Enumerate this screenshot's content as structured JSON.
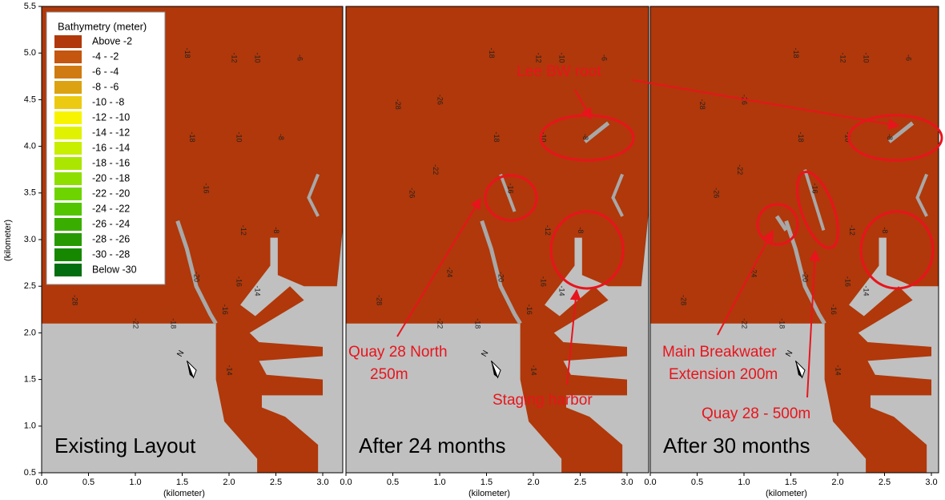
{
  "legend": {
    "title": "Bathymetry (meter)",
    "items": [
      {
        "label": "Above  -2",
        "color": "#b0380a"
      },
      {
        "label": "-4 -  -2",
        "color": "#c4560f"
      },
      {
        "label": "-6 -  -4",
        "color": "#d07a12"
      },
      {
        "label": "-8 -  -6",
        "color": "#dca211"
      },
      {
        "label": "-10 -  -8",
        "color": "#ecca12"
      },
      {
        "label": "-12 - -10",
        "color": "#f8f400"
      },
      {
        "label": "-14 - -12",
        "color": "#e0f200"
      },
      {
        "label": "-16 - -14",
        "color": "#c8ee00"
      },
      {
        "label": "-18 - -16",
        "color": "#aae600"
      },
      {
        "label": "-20 - -18",
        "color": "#8ede00"
      },
      {
        "label": "-22 - -20",
        "color": "#6ed400"
      },
      {
        "label": "-24 - -22",
        "color": "#52c400"
      },
      {
        "label": "-26 - -24",
        "color": "#3aae00"
      },
      {
        "label": "-28 - -26",
        "color": "#269a00"
      },
      {
        "label": "-30 - -28",
        "color": "#158800"
      },
      {
        "label": "Below -30",
        "color": "#036e10"
      }
    ]
  },
  "y_axis_label": "(kilometer)",
  "x_ticks": [
    "0.0",
    "0.5",
    "1.0",
    "1.5",
    "2.0",
    "2.5",
    "3.0"
  ],
  "y_ticks": [
    "0.5",
    "1.0",
    "1.5",
    "2.0",
    "2.5",
    "3.0",
    "3.5",
    "4.0",
    "4.5",
    "5.0",
    "5.5"
  ],
  "panels": [
    {
      "label": "Existing Layout",
      "x_axis_label": "(kilometer)",
      "contour_labels": [
        "-18",
        "-12",
        "-10",
        "-6",
        "-18",
        "-10",
        "-8",
        "-16",
        "-12",
        "-8",
        "-16",
        "-14",
        "-16",
        "-14",
        "-22",
        "-18",
        "-20",
        "-28"
      ]
    },
    {
      "label": "After 24 months",
      "x_axis_label": "(kilometer)",
      "contour_labels": [
        "-18",
        "-12",
        "-10",
        "-6",
        "-18",
        "-10",
        "-8",
        "-16",
        "-12",
        "-8",
        "-16",
        "-14",
        "-16",
        "-14",
        "-22",
        "-18",
        "-20",
        "-28",
        "-28",
        "-26",
        "-26",
        "-24",
        "-22"
      ]
    },
    {
      "label": "After 30 months",
      "x_axis_label": "(kilometer)",
      "contour_labels": [
        "-18",
        "-12",
        "-10",
        "-6",
        "-18",
        "-10",
        "-8",
        "-16",
        "-12",
        "-8",
        "-16",
        "-14",
        "-16",
        "-14",
        "-22",
        "-18",
        "-20",
        "-28",
        "-28",
        "-26",
        "-26",
        "-24",
        "-22"
      ]
    }
  ],
  "annotations": [
    {
      "lines": [
        "Lee BW root"
      ]
    },
    {
      "lines": [
        "Quay 28 North",
        "250m"
      ]
    },
    {
      "lines": [
        "Staging harbor"
      ]
    },
    {
      "lines": [
        "Main Breakwater",
        "Extension 200m"
      ]
    },
    {
      "lines": [
        "Quay 28 - 500m"
      ]
    }
  ]
}
